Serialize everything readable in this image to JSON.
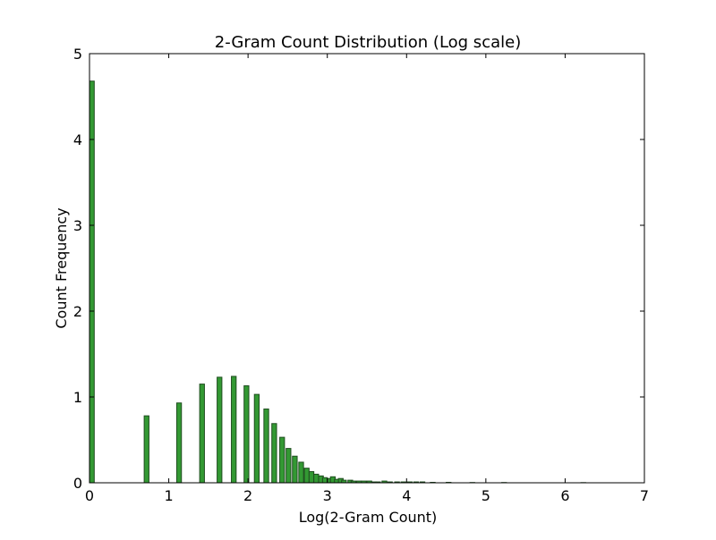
{
  "chart_data": {
    "type": "bar",
    "title": "2-Gram Count Distribution (Log scale)",
    "xlabel": "Log(2-Gram Count)",
    "ylabel": "Count Frequency",
    "xlim": [
      0,
      7
    ],
    "ylim": [
      0,
      5
    ],
    "xticks": [
      "0",
      "1",
      "2",
      "3",
      "4",
      "5",
      "6",
      "7"
    ],
    "yticks": [
      "0",
      "1",
      "2",
      "3",
      "4",
      "5"
    ],
    "grid": false,
    "bar_color": "#339933",
    "bar_edge_color": "#1f4d1f",
    "x": [
      0.0,
      0.69,
      1.1,
      1.39,
      1.61,
      1.79,
      1.95,
      2.08,
      2.2,
      2.3,
      2.4,
      2.48,
      2.56,
      2.64,
      2.71,
      2.77,
      2.83,
      2.89,
      2.94,
      3.0,
      3.04,
      3.09,
      3.14,
      3.18,
      3.26,
      3.3,
      3.37,
      3.43,
      3.5,
      3.56,
      3.61,
      3.69,
      3.76,
      3.85,
      3.93,
      4.01,
      4.09,
      4.17,
      4.3,
      4.5,
      4.8,
      5.2,
      6.2
    ],
    "values": [
      4.68,
      0.78,
      0.93,
      1.15,
      1.23,
      1.24,
      1.13,
      1.03,
      0.86,
      0.69,
      0.53,
      0.4,
      0.31,
      0.24,
      0.17,
      0.13,
      0.1,
      0.08,
      0.06,
      0.05,
      0.07,
      0.04,
      0.05,
      0.03,
      0.03,
      0.02,
      0.02,
      0.02,
      0.02,
      0.01,
      0.01,
      0.02,
      0.01,
      0.01,
      0.01,
      0.01,
      0.01,
      0.01,
      0.005,
      0.005,
      0.003,
      0.003,
      0.002
    ]
  }
}
